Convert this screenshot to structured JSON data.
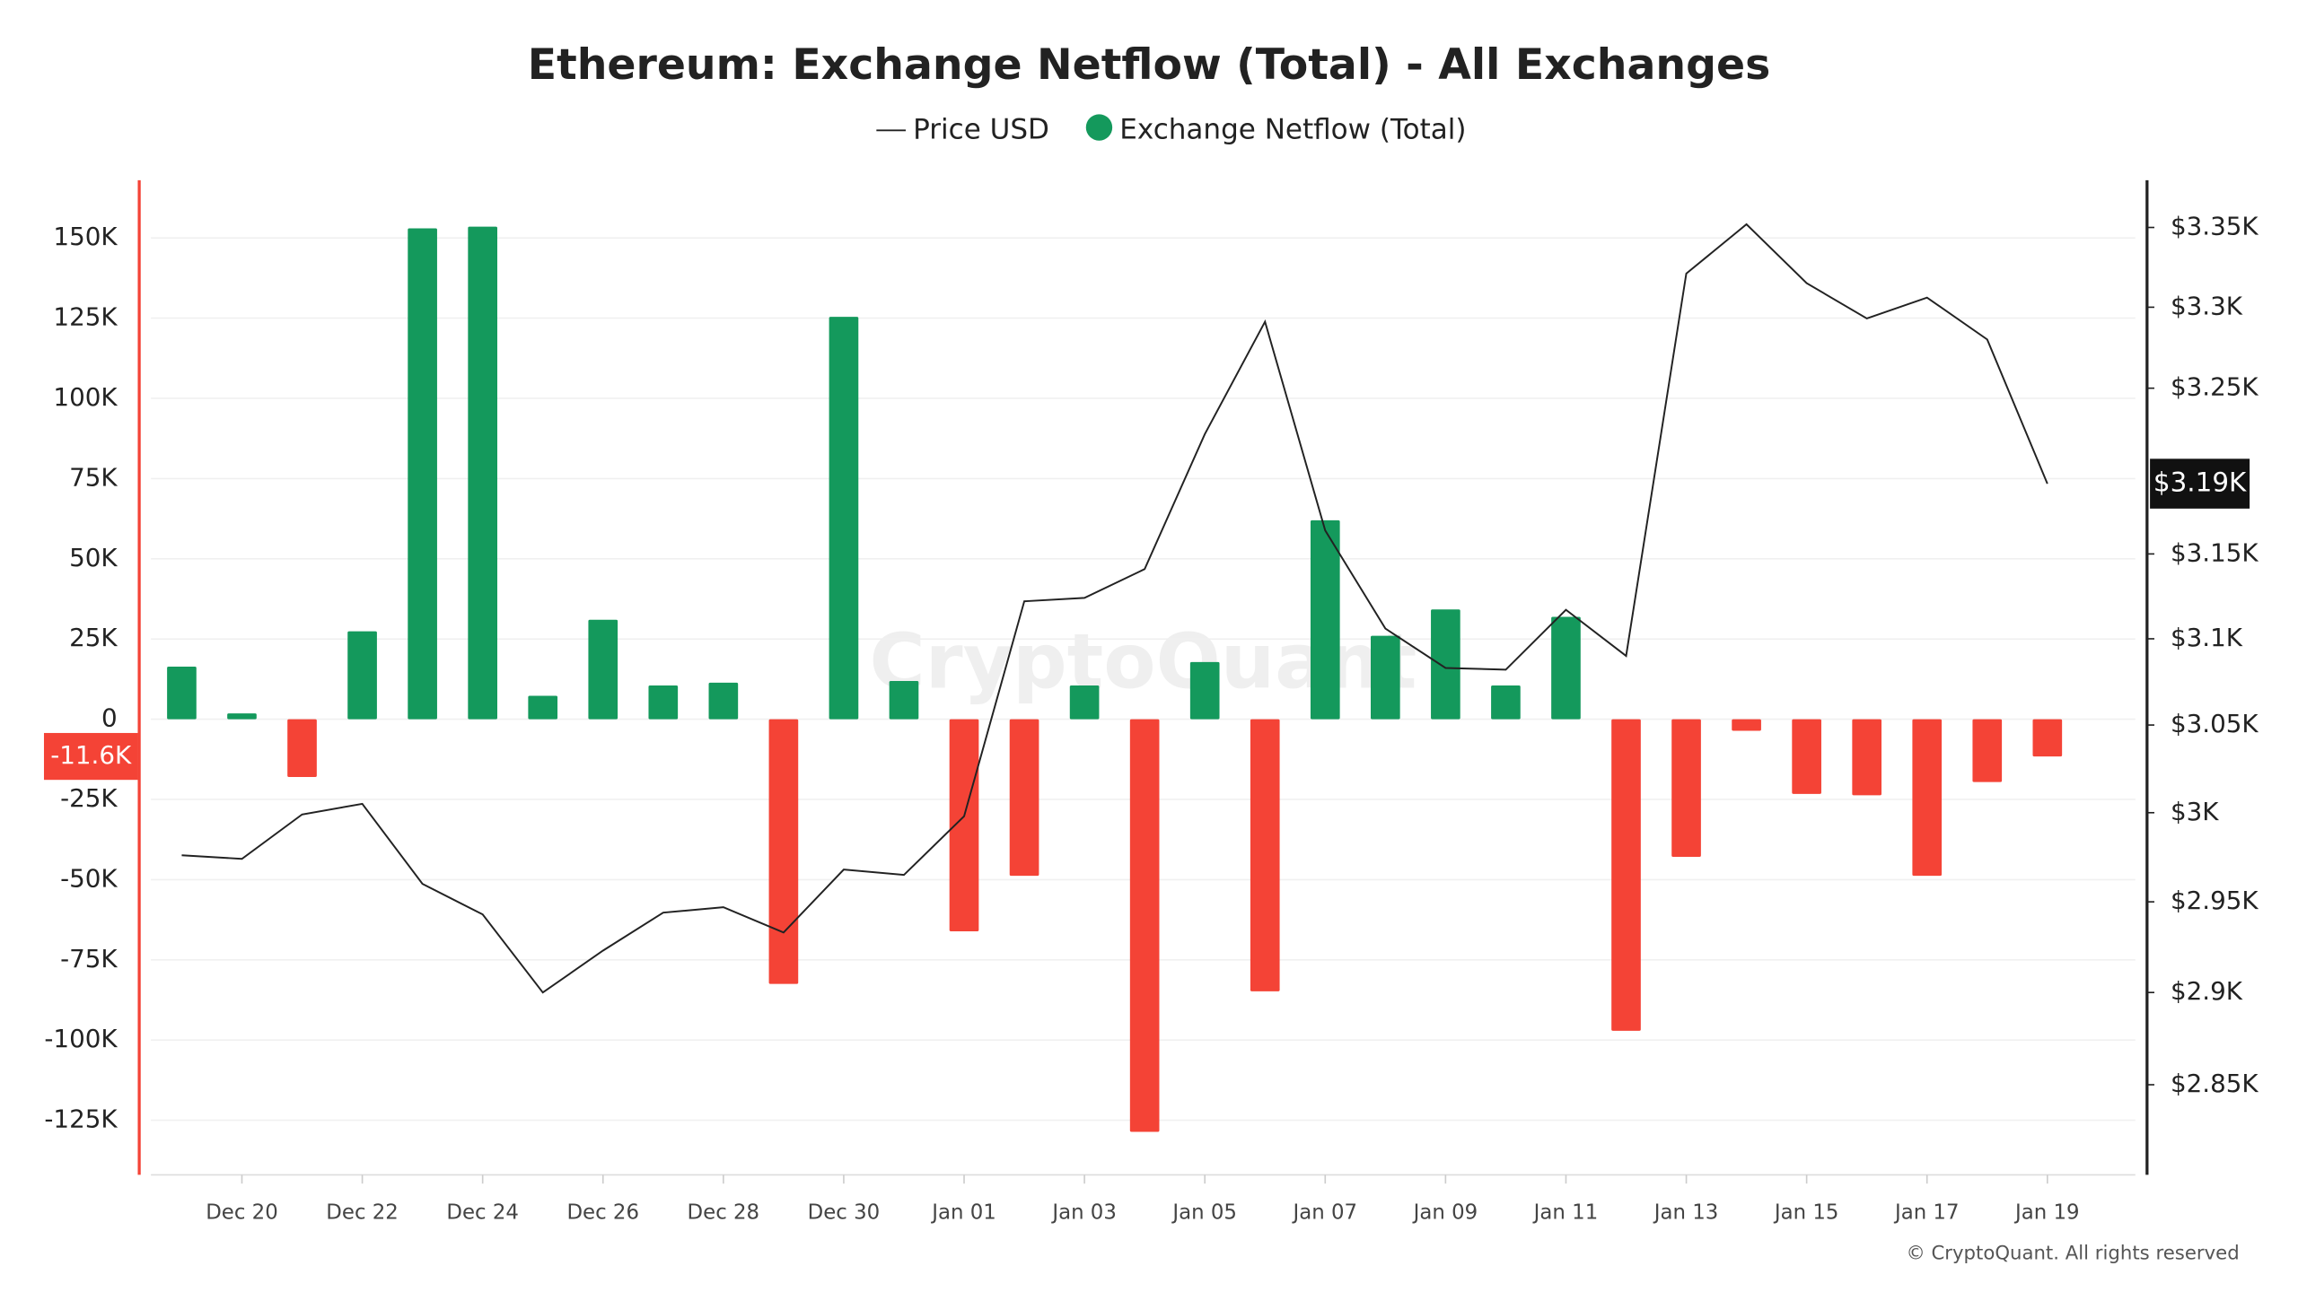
{
  "chart_data": {
    "type": "bar",
    "title": "Ethereum: Exchange Netflow (Total) - All Exchanges",
    "watermark": "CryptoQuant",
    "footer": "© CryptoQuant. All rights reserved",
    "categories": [
      null,
      "Dec 20",
      null,
      "Dec 22",
      null,
      "Dec 24",
      null,
      "Dec 26",
      null,
      "Dec 28",
      null,
      "Dec 30",
      null,
      "Jan 01",
      null,
      "Jan 03",
      null,
      "Jan 05",
      null,
      "Jan 07",
      null,
      "Jan 09",
      null,
      "Jan 11",
      null,
      "Jan 13",
      null,
      "Jan 15",
      null,
      "Jan 17",
      null,
      "Jan 19"
    ],
    "series": [
      {
        "name": "Price USD",
        "type": "line",
        "axis": "y2",
        "color": "#222222",
        "values": [
          2976,
          2974,
          2999,
          3005,
          2960,
          2943,
          2900,
          2923,
          2944,
          2947,
          2933,
          2968,
          2965,
          2998,
          3122,
          3124,
          3141,
          3222,
          3291,
          3164,
          3106,
          3083,
          3082,
          3117,
          3090,
          3321,
          3352,
          3315,
          3293,
          3306,
          3280,
          3192
        ],
        "value_labels": [
          null,
          null,
          null,
          null,
          null,
          null,
          null,
          null,
          null,
          null,
          null,
          null,
          null,
          null,
          null,
          null,
          null,
          null,
          null,
          null,
          null,
          null,
          null,
          null,
          null,
          null,
          null,
          null,
          null,
          null,
          null,
          "$3.19K"
        ]
      },
      {
        "name": "Exchange Netflow (Total)",
        "type": "bar",
        "color": "#14995c",
        "negative_color": "#f44336",
        "values": [
          16400,
          1800,
          -18000,
          27400,
          153000,
          153500,
          7300,
          31000,
          10500,
          11400,
          -82500,
          125400,
          11900,
          -66100,
          -48800,
          10500,
          -128600,
          17800,
          -84800,
          62000,
          26000,
          34200,
          10500,
          31900,
          -97100,
          -42900,
          -3600,
          -23300,
          -23700,
          -48800,
          -19600,
          -11600
        ],
        "value_labels": [
          null,
          null,
          null,
          null,
          null,
          null,
          null,
          null,
          null,
          null,
          null,
          null,
          null,
          null,
          null,
          null,
          null,
          null,
          null,
          null,
          null,
          null,
          null,
          null,
          null,
          null,
          null,
          null,
          null,
          null,
          null,
          "-11.6K"
        ]
      }
    ],
    "ylim": [
      -142000,
      168000
    ],
    "yticks": [
      {
        "value": -125000,
        "label": "-125K"
      },
      {
        "value": -100000,
        "label": "-100K"
      },
      {
        "value": -75000,
        "label": "-75K"
      },
      {
        "value": -50000,
        "label": "-50K"
      },
      {
        "value": -25000,
        "label": "-25K"
      },
      0,
      {
        "value": 25000,
        "label": "25K"
      },
      {
        "value": 50000,
        "label": "50K"
      },
      {
        "value": 75000,
        "label": "75K"
      },
      {
        "value": 100000,
        "label": "100K"
      },
      {
        "value": 125000,
        "label": "125K"
      },
      {
        "value": 150000,
        "label": "150K"
      }
    ],
    "y2lim": [
      2802,
      3380
    ],
    "y2log": true,
    "y2ticks": [
      {
        "value": 2850,
        "label": "$2.85K"
      },
      {
        "value": 2900,
        "label": "$2.9K"
      },
      {
        "value": 2950,
        "label": "$2.95K"
      },
      {
        "value": 3000,
        "label": "$3K"
      },
      {
        "value": 3050,
        "label": "$3.05K"
      },
      {
        "value": 3100,
        "label": "$3.1K"
      },
      {
        "value": 3150,
        "label": "$3.15K"
      },
      {
        "value": 3250,
        "label": "$3.25K"
      },
      {
        "value": 3300,
        "label": "$3.3K"
      },
      {
        "value": 3350,
        "label": "$3.35K"
      }
    ],
    "grid": true,
    "legend": "top"
  }
}
